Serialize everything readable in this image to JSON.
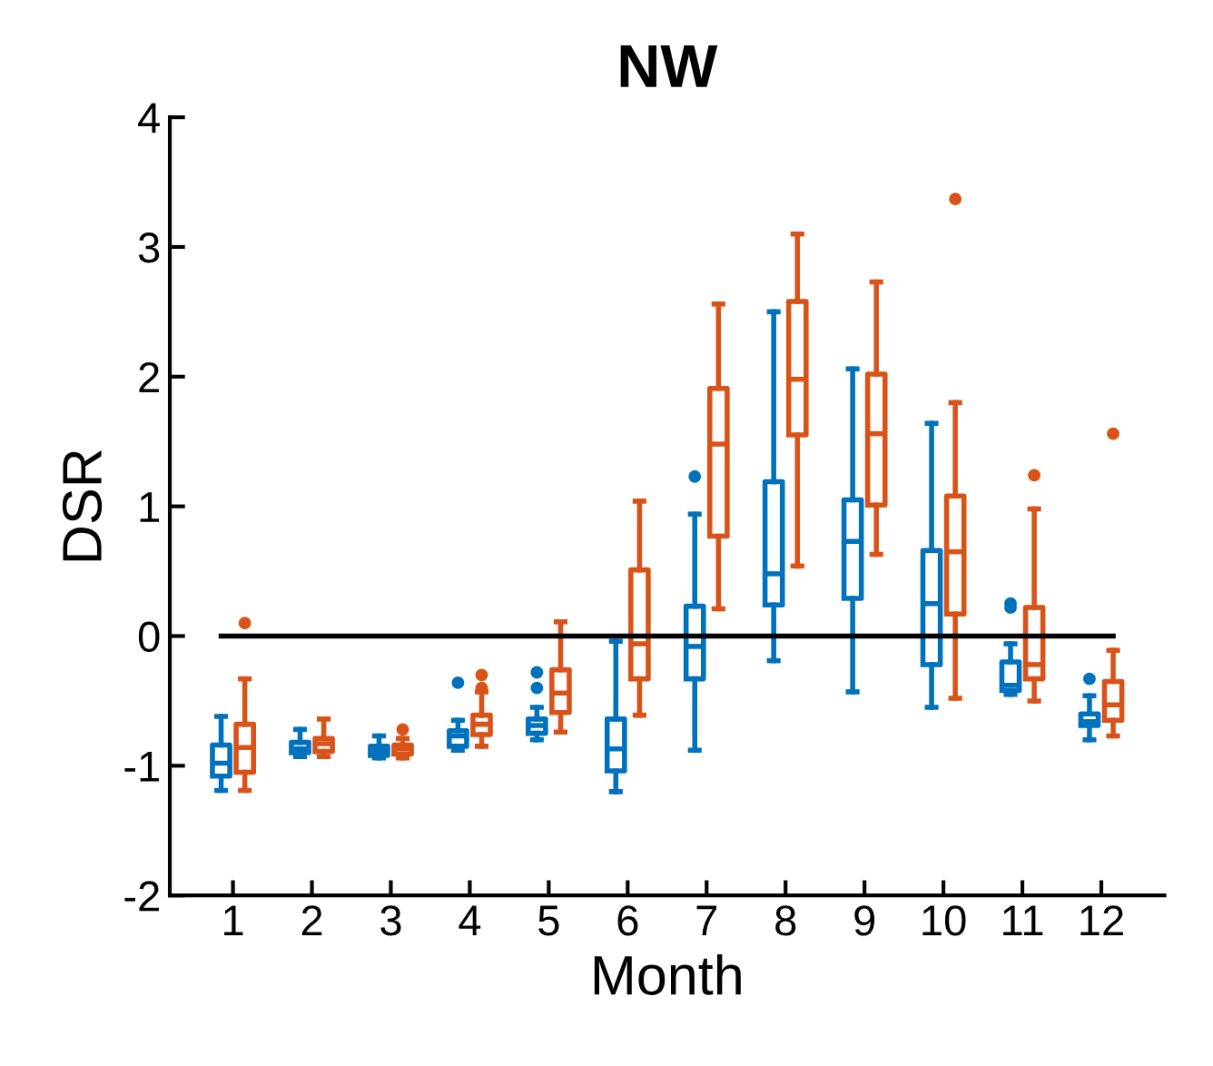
{
  "chart_data": {
    "type": "box",
    "title": "NW",
    "xlabel": "Month",
    "ylabel": "DSR",
    "categories": [
      "1",
      "2",
      "3",
      "4",
      "5",
      "6",
      "7",
      "8",
      "9",
      "10",
      "11",
      "12"
    ],
    "ylim": [
      -2,
      4
    ],
    "yticks": [
      -2,
      -1,
      0,
      1,
      2,
      3,
      4
    ],
    "grid": false,
    "legend": false,
    "ref_lines": [
      {
        "axis": "y",
        "value": 0,
        "color": "#000000"
      }
    ],
    "series": [
      {
        "color": "#0072bd",
        "boxes": [
          {
            "low": -1.19,
            "q1": -1.08,
            "median": -0.98,
            "q3": -0.84,
            "high": -0.62
          },
          {
            "low": -0.93,
            "q1": -0.9,
            "median": -0.87,
            "q3": -0.82,
            "high": -0.72
          },
          {
            "low": -0.94,
            "q1": -0.92,
            "median": -0.88,
            "q3": -0.85,
            "high": -0.77
          },
          {
            "low": -0.88,
            "q1": -0.85,
            "median": -0.77,
            "q3": -0.73,
            "high": -0.65,
            "outliers": [
              -0.36
            ]
          },
          {
            "low": -0.8,
            "q1": -0.75,
            "median": -0.69,
            "q3": -0.64,
            "high": -0.55,
            "outliers": [
              -0.28,
              -0.4
            ]
          },
          {
            "low": -1.2,
            "q1": -1.04,
            "median": -0.87,
            "q3": -0.64,
            "high": -0.04
          },
          {
            "low": -0.88,
            "q1": -0.33,
            "median": -0.08,
            "q3": 0.23,
            "high": 0.94,
            "outliers": [
              1.23
            ]
          },
          {
            "low": -0.19,
            "q1": 0.24,
            "median": 0.48,
            "q3": 1.19,
            "high": 2.5
          },
          {
            "low": -0.43,
            "q1": 0.29,
            "median": 0.73,
            "q3": 1.05,
            "high": 2.06
          },
          {
            "low": -0.55,
            "q1": -0.22,
            "median": 0.25,
            "q3": 0.66,
            "high": 1.64
          },
          {
            "low": -0.45,
            "q1": -0.42,
            "median": -0.38,
            "q3": -0.2,
            "high": -0.06,
            "outliers": [
              0.25,
              0.22
            ]
          },
          {
            "low": -0.8,
            "q1": -0.69,
            "median": -0.66,
            "q3": -0.6,
            "high": -0.46,
            "outliers": [
              -0.33
            ]
          }
        ]
      },
      {
        "color": "#d95319",
        "boxes": [
          {
            "low": -1.19,
            "q1": -1.05,
            "median": -0.86,
            "q3": -0.68,
            "high": -0.33,
            "outliers": [
              0.1
            ]
          },
          {
            "low": -0.93,
            "q1": -0.89,
            "median": -0.83,
            "q3": -0.79,
            "high": -0.64
          },
          {
            "low": -0.94,
            "q1": -0.91,
            "median": -0.87,
            "q3": -0.84,
            "high": -0.79,
            "outliers": [
              -0.72
            ]
          },
          {
            "low": -0.85,
            "q1": -0.76,
            "median": -0.68,
            "q3": -0.61,
            "high": -0.43,
            "outliers": [
              -0.3,
              -0.4
            ]
          },
          {
            "low": -0.74,
            "q1": -0.59,
            "median": -0.44,
            "q3": -0.26,
            "high": 0.11
          },
          {
            "low": -0.61,
            "q1": -0.33,
            "median": -0.06,
            "q3": 0.51,
            "high": 1.04
          },
          {
            "low": 0.21,
            "q1": 0.77,
            "median": 1.48,
            "q3": 1.91,
            "high": 2.56
          },
          {
            "low": 0.54,
            "q1": 1.55,
            "median": 1.98,
            "q3": 2.58,
            "high": 3.1
          },
          {
            "low": 0.63,
            "q1": 1.01,
            "median": 1.56,
            "q3": 2.02,
            "high": 2.73
          },
          {
            "low": -0.48,
            "q1": 0.17,
            "median": 0.65,
            "q3": 1.08,
            "high": 1.8,
            "outliers": [
              3.37
            ]
          },
          {
            "low": -0.5,
            "q1": -0.33,
            "median": -0.22,
            "q3": 0.22,
            "high": 0.98,
            "outliers": [
              1.24
            ]
          },
          {
            "low": -0.77,
            "q1": -0.65,
            "median": -0.53,
            "q3": -0.35,
            "high": -0.11,
            "outliers": [
              1.56
            ]
          }
        ]
      }
    ]
  }
}
